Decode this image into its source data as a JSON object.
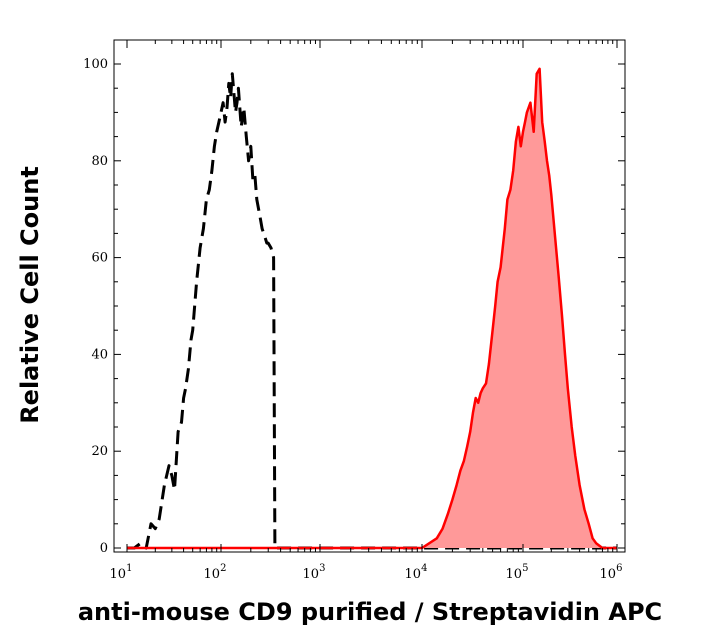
{
  "chart_data": {
    "type": "area",
    "xlabel": "anti-mouse CD9 purified / Streptavidin APC",
    "ylabel": "Relative Cell Count",
    "x_scale": "log",
    "xlim": [
      10,
      1000000
    ],
    "ylim": [
      0,
      100
    ],
    "x_ticks": [
      {
        "base": "10",
        "exp": "1",
        "value": 10
      },
      {
        "base": "10",
        "exp": "2",
        "value": 100
      },
      {
        "base": "10",
        "exp": "3",
        "value": 1000
      },
      {
        "base": "10",
        "exp": "4",
        "value": 10000
      },
      {
        "base": "10",
        "exp": "5",
        "value": 100000
      },
      {
        "base": "10",
        "exp": "6",
        "value": 1000000
      }
    ],
    "y_ticks": [
      "0",
      "20",
      "40",
      "60",
      "80",
      "100"
    ],
    "grid": false,
    "series": [
      {
        "style": "dashed",
        "color": "#000000",
        "fill": "none",
        "x": [
          10,
          12,
          14,
          16,
          18,
          20,
          22,
          25,
          28,
          30,
          32,
          35,
          38,
          40,
          42,
          45,
          48,
          50,
          55,
          60,
          65,
          70,
          75,
          80,
          85,
          90,
          95,
          100,
          105,
          110,
          115,
          120,
          125,
          130,
          135,
          140,
          145,
          150,
          160,
          170,
          180,
          190,
          200,
          210,
          220,
          230,
          240,
          250,
          260,
          270,
          280,
          290,
          300,
          320,
          340,
          350,
          360,
          380,
          400,
          500,
          1000,
          10000,
          100000,
          1000000
        ],
        "y": [
          0,
          0,
          1,
          0,
          5,
          4,
          6,
          13,
          17,
          15,
          12,
          24,
          26,
          31,
          33,
          37,
          43,
          45,
          55,
          62,
          66,
          72,
          74,
          78,
          83,
          86,
          88,
          90,
          92,
          88,
          91,
          96,
          93,
          98,
          94,
          90,
          92,
          95,
          87,
          91,
          85,
          80,
          83,
          76,
          77,
          72,
          70,
          68,
          66,
          65,
          64,
          63,
          63,
          62,
          60,
          0,
          0,
          0,
          0,
          0,
          0,
          0,
          0,
          0
        ]
      },
      {
        "style": "solid",
        "color": "#ff0000",
        "fill": "#ff9999",
        "x": [
          10,
          1000,
          10000,
          14000,
          16000,
          18000,
          20000,
          22000,
          24000,
          26000,
          28000,
          30000,
          32000,
          34000,
          36000,
          38000,
          40000,
          43000,
          46000,
          50000,
          53000,
          56000,
          60000,
          63000,
          66000,
          70000,
          75000,
          80000,
          85000,
          90000,
          95000,
          100000,
          105000,
          110000,
          120000,
          130000,
          140000,
          150000,
          160000,
          170000,
          180000,
          190000,
          200000,
          220000,
          240000,
          260000,
          280000,
          300000,
          330000,
          360000,
          400000,
          450000,
          500000,
          550000,
          600000,
          700000,
          1000000
        ],
        "y": [
          0,
          0,
          0,
          2,
          4,
          7,
          10,
          13,
          16,
          18,
          21,
          24,
          28,
          31,
          30,
          32,
          33,
          34,
          38,
          45,
          50,
          55,
          58,
          62,
          66,
          72,
          74,
          78,
          84,
          87,
          83,
          86,
          88,
          90,
          92,
          86,
          98,
          99,
          88,
          84,
          80,
          77,
          73,
          64,
          56,
          48,
          40,
          33,
          25,
          19,
          13,
          8,
          5,
          2,
          1,
          0,
          0
        ]
      }
    ]
  }
}
